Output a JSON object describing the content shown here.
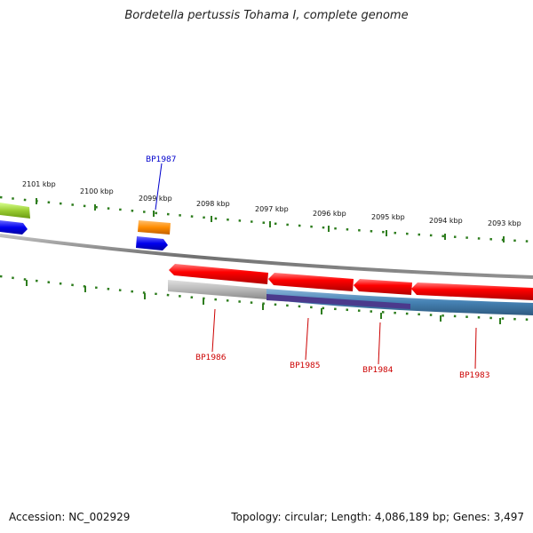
{
  "title": "Bordetella pertussis Tohama I, complete genome",
  "footer": {
    "accession": "Accession: NC_002929",
    "stats": "Topology: circular; Length: 4,086,189 bp; Genes: 3,497"
  },
  "ruler": {
    "labels": [
      "2101 kbp",
      "2100 kbp",
      "2099 kbp",
      "2098 kbp",
      "2097 kbp",
      "2096 kbp",
      "2095 kbp",
      "2094 kbp",
      "2093 kbp"
    ]
  },
  "genes": [
    {
      "name": "BP1987",
      "color": "#0000cc"
    },
    {
      "name": "BP1986",
      "color": "#cc0000"
    },
    {
      "name": "BP1985",
      "color": "#cc0000"
    },
    {
      "name": "BP1984",
      "color": "#cc0000"
    },
    {
      "name": "BP1983",
      "color": "#cc0000"
    }
  ],
  "colors": {
    "tick": "#2e7d1e",
    "backbone": "#808080",
    "forward_cds": "#ff0000",
    "reverse_blue": "#0000ee",
    "orange": "#ff8c00",
    "yellowgreen": "#9acd32",
    "steelblue": "#4682b4",
    "purple": "#4b3a8c",
    "gray_track": "#b8b8b8"
  }
}
